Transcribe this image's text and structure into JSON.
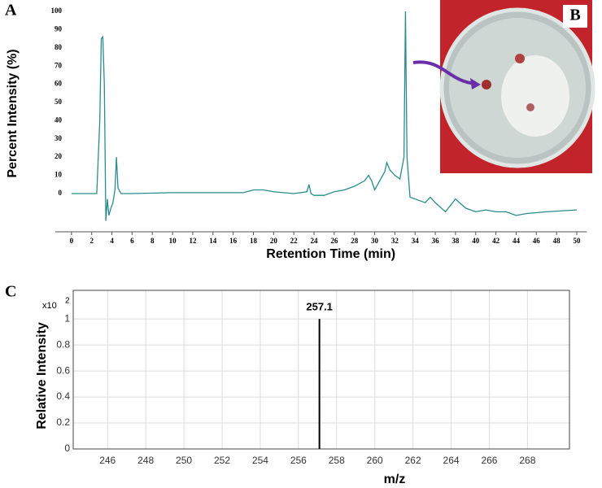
{
  "panels": {
    "a": "A",
    "b": "B",
    "c": "C"
  },
  "chart_data": [
    {
      "type": "line",
      "color": "#2a8c8c",
      "y_label": "Percent Intensity (%)",
      "x_label": "Retention Time (min)",
      "x": [
        0,
        2.5,
        2.8,
        2.95,
        3.1,
        3.25,
        3.4,
        3.55,
        3.7,
        3.9,
        4.1,
        4.3,
        4.45,
        4.6,
        4.9,
        6,
        10,
        14,
        17,
        18,
        19,
        20,
        22,
        23.3,
        23.5,
        23.7,
        24,
        25,
        26,
        27,
        28,
        29,
        29.4,
        29.7,
        30,
        30.3,
        31,
        31.2,
        31.5,
        32,
        32.5,
        32.9,
        33.05,
        33.2,
        33.5,
        34,
        35,
        35.5,
        36,
        37,
        38,
        39,
        40,
        41,
        42,
        43,
        44,
        45,
        47,
        50
      ],
      "values": [
        0,
        0,
        40,
        85,
        86,
        60,
        -15,
        -3,
        -12,
        -8,
        -5,
        2,
        20,
        3,
        0,
        0,
        0.5,
        0.5,
        0.5,
        2,
        2,
        1,
        0,
        1,
        5,
        0,
        -1,
        -1,
        1,
        2,
        4,
        7,
        10,
        7,
        2,
        5,
        12,
        17,
        13,
        10,
        8,
        20,
        100,
        20,
        -2,
        -3,
        -5,
        -2,
        -5,
        -10,
        -3,
        -8,
        -10,
        -9,
        -10,
        -10,
        -12,
        -11,
        -10,
        -9
      ],
      "xlim": [
        -1.6,
        51
      ],
      "ylim": [
        -21,
        100
      ],
      "xticks": [
        0,
        2,
        4,
        6,
        8,
        10,
        12,
        14,
        16,
        18,
        20,
        22,
        24,
        26,
        28,
        30,
        32,
        34,
        36,
        38,
        40,
        42,
        44,
        46,
        48,
        50
      ],
      "yticks": [
        0,
        10,
        20,
        30,
        40,
        50,
        60,
        70,
        80,
        90,
        100
      ],
      "grid": false
    },
    {
      "type": "bar",
      "color": "#000000",
      "y_label": "Relative Intensity",
      "x_label": "m/z",
      "y_scale_label": "x10",
      "y_scale_exponent": "2",
      "x": [
        257.1
      ],
      "values": [
        1
      ],
      "xlim": [
        244.2,
        270.2
      ],
      "ylim": [
        0,
        1.22
      ],
      "xticks": [
        246,
        248,
        250,
        252,
        254,
        256,
        258,
        260,
        262,
        264,
        266,
        268
      ],
      "yticks": [
        0,
        0.2,
        0.4,
        0.6,
        0.8,
        1
      ],
      "grid": true
    }
  ]
}
